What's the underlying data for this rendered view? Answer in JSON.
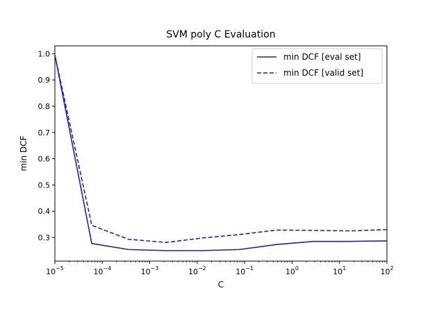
{
  "chart_data": {
    "type": "line",
    "title": "SVM poly C Evaluation",
    "xlabel": "C",
    "ylabel": "min DCF",
    "xscale": "log",
    "xlim": [
      1e-05,
      100
    ],
    "ylim": [
      0.21,
      1.03
    ],
    "grid": false,
    "legend_position": "top-right",
    "x_ticks": [
      {
        "base": "10",
        "exp": "−5",
        "value": 1e-05
      },
      {
        "base": "10",
        "exp": "−4",
        "value": 0.0001
      },
      {
        "base": "10",
        "exp": "−3",
        "value": 0.001
      },
      {
        "base": "10",
        "exp": "−2",
        "value": 0.01
      },
      {
        "base": "10",
        "exp": "−1",
        "value": 0.1
      },
      {
        "base": "10",
        "exp": "0",
        "value": 1
      },
      {
        "base": "10",
        "exp": "1",
        "value": 10
      },
      {
        "base": "10",
        "exp": "2",
        "value": 100
      }
    ],
    "y_ticks": [
      "0.3",
      "0.4",
      "0.5",
      "0.6",
      "0.7",
      "0.8",
      "0.9",
      "1.0"
    ],
    "x": [
      1e-05,
      6e-05,
      0.00036,
      0.0022,
      0.013,
      0.077,
      0.46,
      2.8,
      17,
      100
    ],
    "series": [
      {
        "name": "min DCF [eval set]",
        "style": "solid",
        "color": "#1f1fbf",
        "values": [
          0.995,
          0.277,
          0.254,
          0.25,
          0.25,
          0.254,
          0.273,
          0.285,
          0.285,
          0.287
        ]
      },
      {
        "name": "min DCF [valid set]",
        "style": "dashed",
        "color": "#1f1fbf",
        "values": [
          0.995,
          0.346,
          0.293,
          0.281,
          0.298,
          0.311,
          0.328,
          0.327,
          0.325,
          0.33
        ]
      }
    ]
  }
}
